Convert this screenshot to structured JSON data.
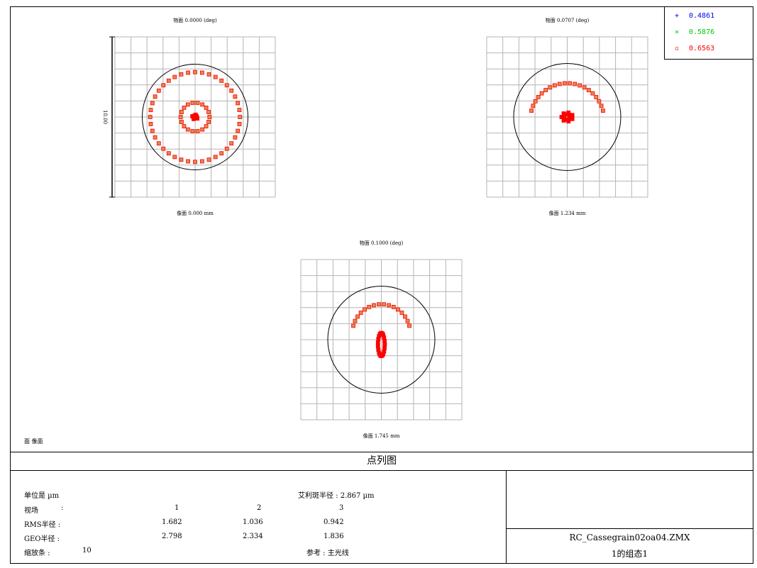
{
  "colors": {
    "grid": "#b4b4b4",
    "circle": "#000000",
    "spot_fill": "#e08a4e",
    "spot_edge": "#ff0000"
  },
  "legend": [
    {
      "symbol": "+",
      "label": "0.4861",
      "color": "#0000ff"
    },
    {
      "symbol": "×",
      "label": "0.5876",
      "color": "#00c800"
    },
    {
      "symbol": "▫",
      "label": "0.6563",
      "color": "#ff0000"
    }
  ],
  "footer_left": "面 像面",
  "diagram_title": "点列图",
  "info": {
    "units": "单位是 µm",
    "airy": "艾利斑半径 : 2.867 µm",
    "field_label": "视场",
    "field_colon": ":",
    "fields": [
      "1",
      "2",
      "3"
    ],
    "rms_label": "RMS半径 :",
    "rms": [
      "1.682",
      "1.036",
      "0.942"
    ],
    "geo_label": "GEO半径 :",
    "geo": [
      "2.798",
      "2.334",
      "1.836"
    ],
    "scale_label": "缩放条  :",
    "scale_value": "10",
    "ref": "参考  : 主光线"
  },
  "file": {
    "name": "RC_Cassegrain02oa04.ZMX",
    "config": "1的组态1"
  },
  "chart_data": {
    "type": "scatter",
    "unit": "µm",
    "scale_bar": "10.00",
    "grid_divisions": 10,
    "airy_radius": 2.867,
    "half_width_um": 5,
    "wavelengths": [
      "0.4861",
      "0.5876",
      "0.6563"
    ],
    "panels": [
      {
        "id": "field-1",
        "object_label": "物面 0.0000 (deg)",
        "image_label": "像面 0.000 mm",
        "rings": [
          {
            "r": 2.8,
            "n": 40,
            "from": 0,
            "to": 360
          },
          {
            "r": 0.9,
            "n": 18,
            "from": 0,
            "to": 360
          }
        ],
        "core": {
          "x": 0,
          "y": 0,
          "n": 9,
          "spread": 0.18
        }
      },
      {
        "id": "field-2",
        "object_label": "物面 0.0707 (deg)",
        "image_label": "像面 1.234 mm",
        "rings": [
          {
            "r": 2.3,
            "n": 20,
            "from": 15,
            "to": 165,
            "dy": 0.2
          }
        ],
        "core": {
          "x": 0,
          "y": 0,
          "n": 14,
          "spread": 0.35
        }
      },
      {
        "id": "field-3",
        "object_label": "物面 0.1000 (deg)",
        "image_label": "像面 1.745 mm",
        "rings": [
          {
            "r": 1.8,
            "n": 16,
            "from": 15,
            "to": 165,
            "dy": -0.4
          }
        ],
        "core": {
          "x": 0,
          "y": 0,
          "n": 20,
          "spread": 0.25,
          "elongated": true
        }
      }
    ]
  }
}
